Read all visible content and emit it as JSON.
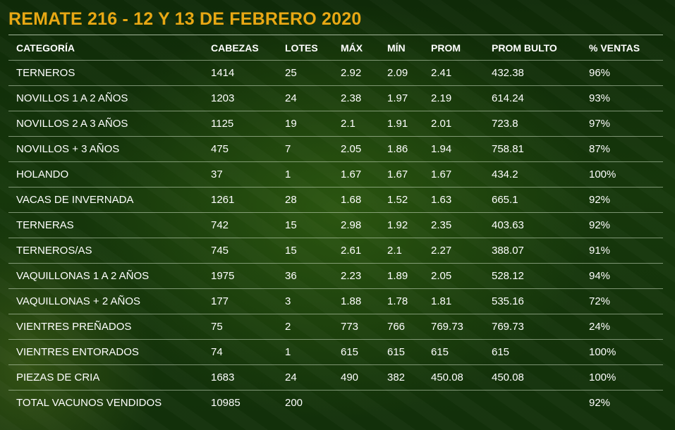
{
  "title": "REMATE 216 - 12 Y 13 DE FEBRERO 2020",
  "headers": [
    "CATEGORÍA",
    "CABEZAS",
    "LOTES",
    "MÁX",
    "MÍN",
    "PROM",
    "PROM BULTO",
    "% VENTAS"
  ],
  "rows": [
    [
      "TERNEROS",
      "1414",
      "25",
      "2.92",
      "2.09",
      "2.41",
      "432.38",
      "96%"
    ],
    [
      "NOVILLOS 1 A 2 AÑOS",
      "1203",
      "24",
      "2.38",
      "1.97",
      "2.19",
      "614.24",
      "93%"
    ],
    [
      "NOVILLOS 2 A 3 AÑOS",
      "1125",
      "19",
      "2.1",
      "1.91",
      "2.01",
      "723.8",
      "97%"
    ],
    [
      "NOVILLOS + 3 AÑOS",
      "475",
      "7",
      "2.05",
      "1.86",
      "1.94",
      "758.81",
      "87%"
    ],
    [
      "HOLANDO",
      "37",
      "1",
      "1.67",
      "1.67",
      "1.67",
      "434.2",
      "100%"
    ],
    [
      "VACAS DE INVERNADA",
      "1261",
      "28",
      "1.68",
      "1.52",
      "1.63",
      "665.1",
      "92%"
    ],
    [
      "TERNERAS",
      "742",
      "15",
      "2.98",
      "1.92",
      "2.35",
      "403.63",
      "92%"
    ],
    [
      "TERNEROS/AS",
      "745",
      "15",
      "2.61",
      "2.1",
      "2.27",
      "388.07",
      "91%"
    ],
    [
      "VAQUILLONAS 1 A 2 AÑOS",
      "1975",
      "36",
      "2.23",
      "1.89",
      "2.05",
      "528.12",
      "94%"
    ],
    [
      "VAQUILLONAS + 2 AÑOS",
      "177",
      "3",
      "1.88",
      "1.78",
      "1.81",
      "535.16",
      "72%"
    ],
    [
      "VIENTRES PREÑADOS",
      "75",
      "2",
      "773",
      "766",
      "769.73",
      "769.73",
      "24%"
    ],
    [
      "VIENTRES ENTORADOS",
      "74",
      "1",
      "615",
      "615",
      "615",
      "615",
      "100%"
    ],
    [
      "PIEZAS DE CRIA",
      "1683",
      "24",
      "490",
      "382",
      "450.08",
      "450.08",
      "100%"
    ],
    [
      "TOTAL VACUNOS VENDIDOS",
      "10985",
      "200",
      "",
      "",
      "",
      "",
      "92%"
    ]
  ],
  "colors": {
    "title": "#e8a814",
    "text": "#ffffff",
    "background": "#16370b"
  }
}
